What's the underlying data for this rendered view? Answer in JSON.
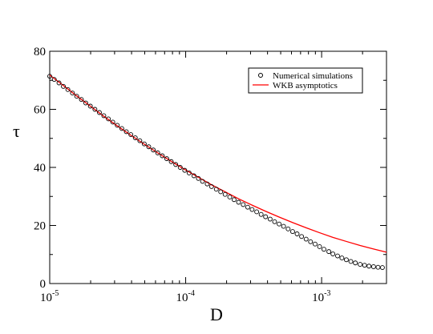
{
  "chart_data": {
    "type": "line",
    "xlabel": "D",
    "ylabel": "τ",
    "x_scale": "log",
    "xlim": [
      1e-05,
      0.003
    ],
    "ylim": [
      0,
      80
    ],
    "grid": false,
    "legend_position": "top-right",
    "x_ticks": [
      {
        "value": 1e-05,
        "base": "10",
        "exp": "-5"
      },
      {
        "value": 0.0001,
        "base": "10",
        "exp": "-4"
      },
      {
        "value": 0.001,
        "base": "10",
        "exp": "-3"
      }
    ],
    "y_ticks": [
      0,
      20,
      40,
      60,
      80
    ],
    "series": [
      {
        "name": "Numerical simulations",
        "style": "open-circle",
        "color": "#000000",
        "x": [
          1e-05,
          1.08e-05,
          1.17e-05,
          1.26e-05,
          1.36e-05,
          1.47e-05,
          1.58e-05,
          1.71e-05,
          1.84e-05,
          1.99e-05,
          2.15e-05,
          2.32e-05,
          2.5e-05,
          2.7e-05,
          2.91e-05,
          3.14e-05,
          3.39e-05,
          3.66e-05,
          3.95e-05,
          4.26e-05,
          4.6e-05,
          4.96e-05,
          5.35e-05,
          5.78e-05,
          6.23e-05,
          6.73e-05,
          7.26e-05,
          7.83e-05,
          8.45e-05,
          9.12e-05,
          9.84e-05,
          0.000106,
          0.000115,
          0.000124,
          0.000133,
          0.000144,
          0.000155,
          0.000168,
          0.000181,
          0.000195,
          0.000211,
          0.000227,
          0.000245,
          0.000265,
          0.000286,
          0.000308,
          0.000333,
          0.000359,
          0.000387,
          0.000418,
          0.000451,
          0.000487,
          0.000525,
          0.000567,
          0.000612,
          0.00066,
          0.000712,
          0.000769,
          0.000829,
          0.000895,
          0.000966,
          0.00104,
          0.00113,
          0.00121,
          0.00131,
          0.00141,
          0.00152,
          0.00164,
          0.00177,
          0.00192,
          0.00207,
          0.00223,
          0.00241,
          0.0026,
          0.0028
        ],
        "y": [
          71.4,
          70.3,
          69.1,
          67.9,
          66.8,
          65.6,
          64.5,
          63.4,
          62.2,
          61.1,
          60.0,
          58.9,
          57.8,
          56.7,
          55.6,
          54.5,
          53.4,
          52.3,
          51.3,
          50.2,
          49.2,
          48.1,
          47.1,
          46.0,
          45.0,
          44.0,
          43.0,
          42.0,
          41.0,
          40.0,
          39.0,
          38.1,
          37.1,
          36.2,
          35.2,
          34.3,
          33.4,
          32.5,
          31.6,
          30.7,
          29.8,
          28.9,
          28.0,
          27.2,
          26.3,
          25.5,
          24.7,
          23.8,
          23.0,
          22.2,
          21.3,
          20.5,
          19.7,
          18.8,
          17.9,
          17.1,
          16.2,
          15.3,
          14.4,
          13.6,
          12.7,
          11.8,
          11.0,
          10.2,
          9.5,
          8.8,
          8.2,
          7.6,
          7.1,
          6.6,
          6.3,
          6.0,
          5.8,
          5.6,
          5.5
        ]
      },
      {
        "name": "WKB asymptotics",
        "style": "line",
        "color": "#ff0000",
        "x": [
          1e-05,
          1.26e-05,
          1.58e-05,
          1.99e-05,
          2.5e-05,
          3.14e-05,
          3.95e-05,
          4.96e-05,
          6.23e-05,
          7.83e-05,
          9.84e-05,
          0.000124,
          0.000155,
          0.000195,
          0.000245,
          0.000308,
          0.000387,
          0.000487,
          0.000612,
          0.000769,
          0.000966,
          0.00121,
          0.00152,
          0.00192,
          0.00241,
          0.003
        ],
        "y": [
          71.8,
          68.2,
          64.6,
          61.1,
          57.6,
          54.3,
          51.1,
          48.0,
          45.0,
          42.1,
          39.3,
          36.6,
          34.0,
          31.6,
          29.2,
          27.0,
          24.9,
          22.9,
          21.0,
          19.2,
          17.5,
          15.9,
          14.5,
          13.1,
          11.9,
          10.8
        ]
      }
    ]
  }
}
